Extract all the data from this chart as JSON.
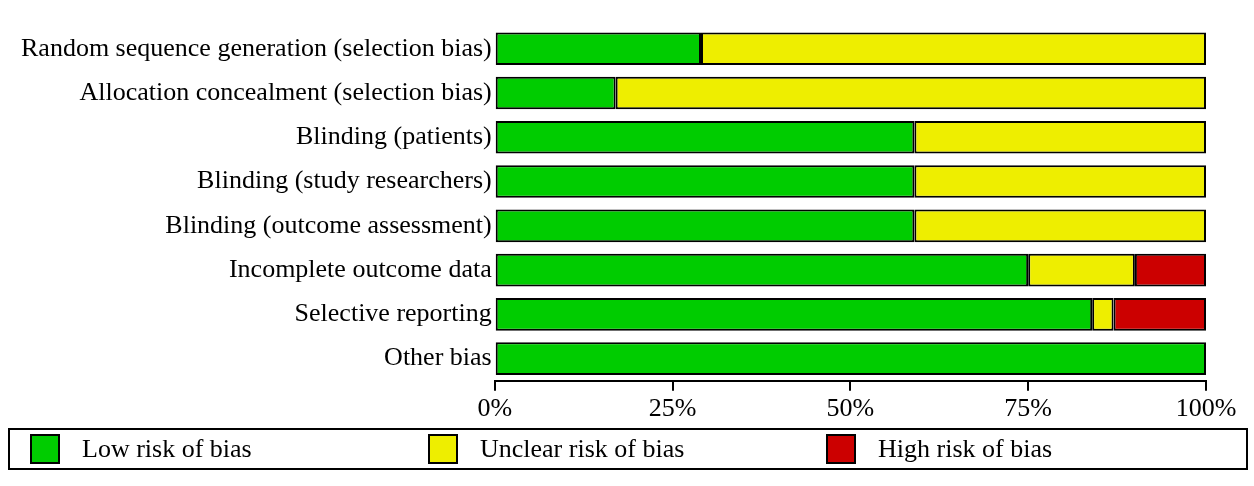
{
  "chart_data": {
    "type": "bar",
    "orientation": "horizontal",
    "stacked": true,
    "categories": [
      "Random sequence generation (selection bias)",
      "Allocation concealment (selection bias)",
      "Blinding (patients)",
      "Blinding (study researchers)",
      "Blinding (outcome assessment)",
      "Incomplete outcome data",
      "Selective reporting",
      "Other bias"
    ],
    "series": [
      {
        "name": "Low risk of bias",
        "color": "#00cc00",
        "values": [
          29,
          17,
          59,
          59,
          59,
          75,
          84,
          100
        ]
      },
      {
        "name": "Unclear risk of bias",
        "color": "#eeee00",
        "values": [
          71,
          83,
          41,
          41,
          41,
          15,
          3,
          0
        ]
      },
      {
        "name": "High risk of bias",
        "color": "#cc0000",
        "values": [
          0,
          0,
          0,
          0,
          0,
          10,
          13,
          0
        ]
      }
    ],
    "xlim": [
      0,
      100
    ],
    "xticks": [
      {
        "value": 0,
        "label": "0%"
      },
      {
        "value": 25,
        "label": "25%"
      },
      {
        "value": 50,
        "label": "50%"
      },
      {
        "value": 75,
        "label": "75%"
      },
      {
        "value": 100,
        "label": "100%"
      }
    ],
    "grid": false,
    "legend": "bottom"
  }
}
